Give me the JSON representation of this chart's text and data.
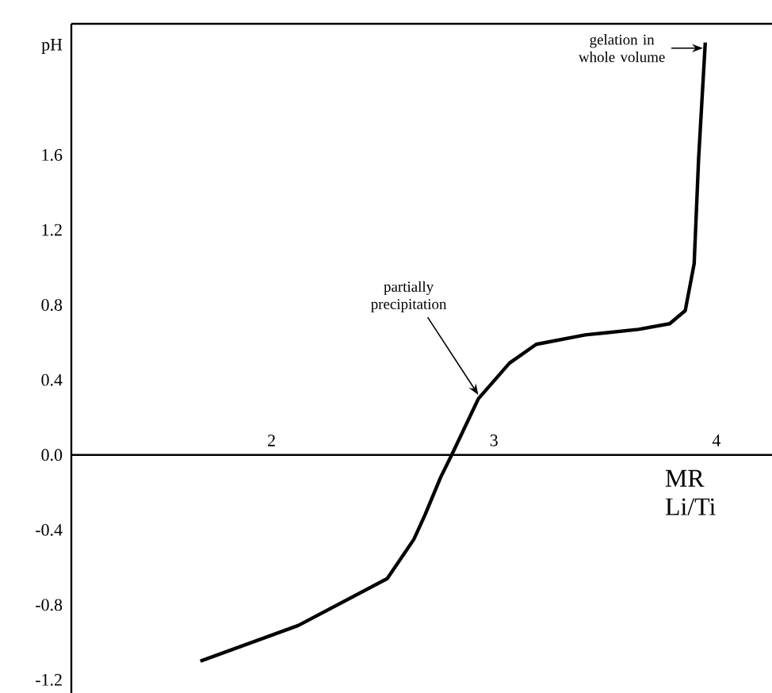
{
  "chart_data": {
    "type": "line",
    "xlabel": "MR Li/Ti",
    "ylabel": "pH",
    "xlim": [
      1.1,
      4.25
    ],
    "xticks": [
      2,
      3,
      4
    ],
    "ylim": [
      -1.27,
      2.3
    ],
    "yticks": [
      {
        "value": -1.2,
        "label": "-1.2"
      },
      {
        "value": -0.8,
        "label": "-0.8"
      },
      {
        "value": -0.4,
        "label": "-0.4"
      },
      {
        "value": 0,
        "label": "0.0"
      },
      {
        "value": 0.4,
        "label": "0.4"
      },
      {
        "value": 0.8,
        "label": "0.8"
      },
      {
        "value": 1.2,
        "label": "1.2"
      },
      {
        "value": 1.6,
        "label": "1.6"
      }
    ],
    "series": [
      {
        "color": "#000000",
        "x": [
          1.68,
          2.12,
          2.52,
          2.64,
          2.69,
          2.76,
          2.81,
          2.93,
          3.07,
          3.19,
          3.41,
          3.65,
          3.79,
          3.86,
          3.9,
          3.92,
          3.95
        ],
        "values": [
          -1.1,
          -0.91,
          -0.66,
          -0.45,
          -0.32,
          -0.12,
          0.0,
          0.3,
          0.49,
          0.59,
          0.64,
          0.67,
          0.7,
          0.77,
          1.02,
          1.58,
          2.2
        ]
      }
    ],
    "annotations": [
      {
        "text": "partially precipitation",
        "x": 2.93,
        "y": 0.32
      },
      {
        "text": "gelation in whole volume",
        "x": 3.94,
        "y": 2.17
      }
    ]
  }
}
